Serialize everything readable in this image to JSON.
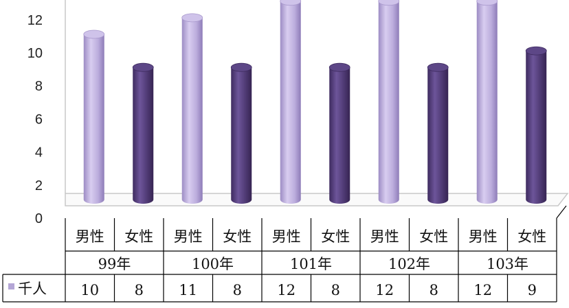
{
  "chart_data": {
    "type": "bar",
    "title": "",
    "xlabel": "",
    "ylabel": "",
    "ylim": [
      0,
      12
    ],
    "yticks": [
      0,
      2,
      4,
      6,
      8,
      10,
      12
    ],
    "grid": false,
    "groups": [
      "99年",
      "100年",
      "101年",
      "102年",
      "103年"
    ],
    "categories": [
      "男性",
      "女性",
      "男性",
      "女性",
      "男性",
      "女性",
      "男性",
      "女性",
      "男性",
      "女性"
    ],
    "series": [
      {
        "name": "千人",
        "values": [
          10,
          8,
          11,
          8,
          12,
          8,
          12,
          8,
          12,
          9
        ]
      }
    ],
    "legend": "bottom-left data table",
    "colors": {
      "male": "#b4a6d6",
      "female": "#4f3a74"
    }
  }
}
